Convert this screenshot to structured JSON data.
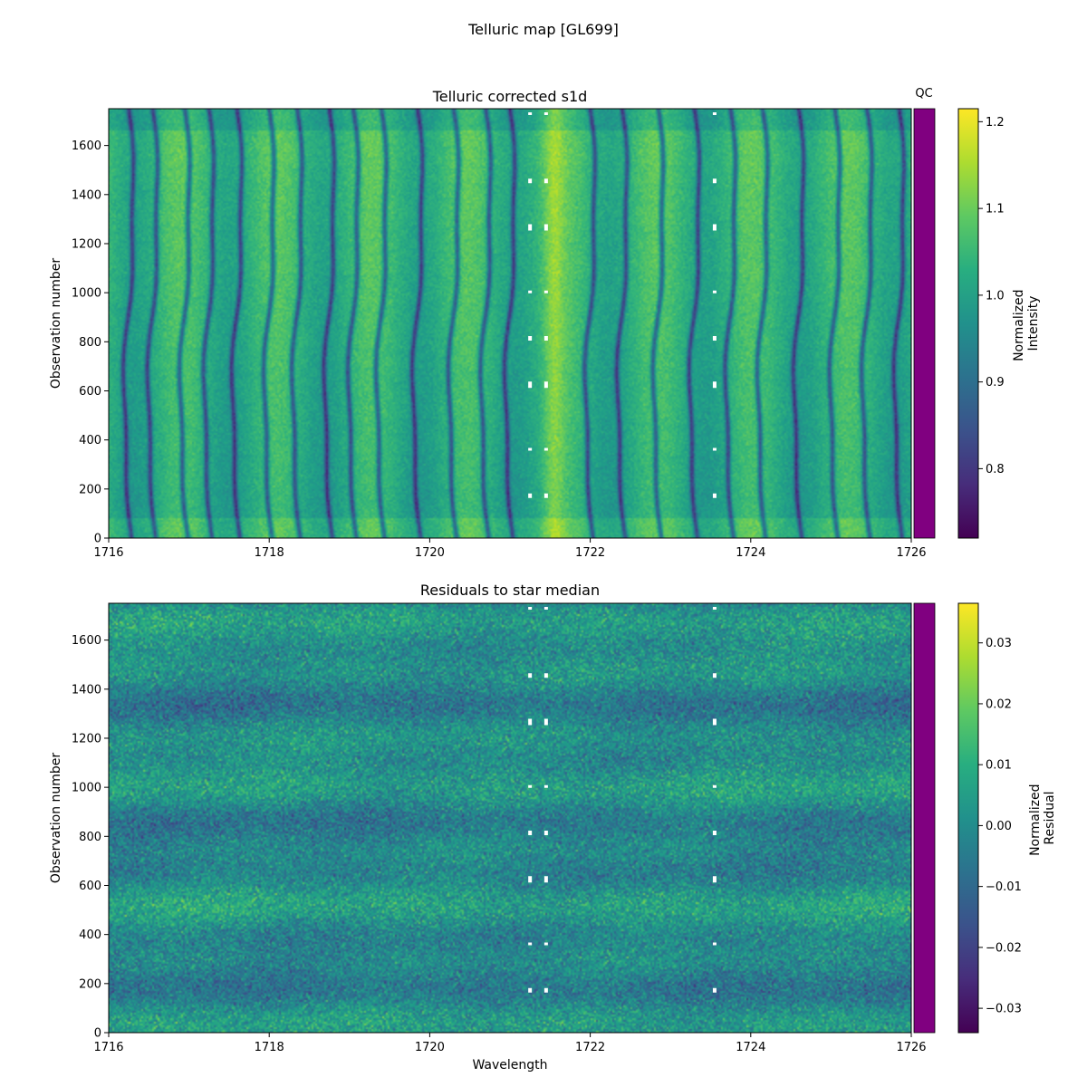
{
  "figure_title": "Telluric map [GL699]",
  "chart_data": [
    {
      "type": "heatmap",
      "title": "Telluric corrected s1d",
      "xlabel": "",
      "ylabel": "Observation number",
      "xlim": [
        1716,
        1726
      ],
      "ylim": [
        0,
        1750
      ],
      "xticks": [
        1716,
        1718,
        1720,
        1722,
        1724,
        1726
      ],
      "xtick_labels": [
        "1716",
        "1718",
        "1720",
        "1722",
        "1724",
        "1726"
      ],
      "yticks": [
        0,
        200,
        400,
        600,
        800,
        1000,
        1200,
        1400,
        1600
      ],
      "ytick_labels": [
        "0",
        "200",
        "400",
        "600",
        "800",
        "1000",
        "1200",
        "1400",
        "1600"
      ],
      "colormap": "viridis",
      "colorbar": {
        "label": "Normalized\nIntensity",
        "label_lines": [
          "Normalized",
          "Intensity"
        ],
        "range": [
          0.72,
          1.215
        ],
        "ticks": [
          0.8,
          0.9,
          1.0,
          1.1,
          1.2
        ],
        "tick_labels": [
          "0.8",
          "0.9",
          "1.0",
          "1.1",
          "1.2"
        ]
      },
      "qc_label": "QC",
      "qc_color": "#800080",
      "absorption_lines_wavelength": [
        1716.25,
        1716.55,
        1716.95,
        1717.25,
        1717.6,
        1718.0,
        1718.35,
        1718.75,
        1719.05,
        1719.4,
        1719.85,
        1720.3,
        1720.7,
        1721.0,
        1722.0,
        1722.4,
        1722.85,
        1723.3,
        1723.75,
        1724.15,
        1724.6,
        1725.05,
        1725.45,
        1725.85
      ],
      "gap_wavelengths": [
        1721.25,
        1721.45,
        1723.55
      ]
    },
    {
      "type": "heatmap",
      "title": "Residuals to star median",
      "xlabel": "Wavelength",
      "ylabel": "Observation number",
      "xlim": [
        1716,
        1726
      ],
      "ylim": [
        0,
        1750
      ],
      "xticks": [
        1716,
        1718,
        1720,
        1722,
        1724,
        1726
      ],
      "xtick_labels": [
        "1716",
        "1718",
        "1720",
        "1722",
        "1724",
        "1726"
      ],
      "yticks": [
        0,
        200,
        400,
        600,
        800,
        1000,
        1200,
        1400,
        1600
      ],
      "ytick_labels": [
        "0",
        "200",
        "400",
        "600",
        "800",
        "1000",
        "1200",
        "1400",
        "1600"
      ],
      "colormap": "viridis",
      "colorbar": {
        "label": "Normalized\nResidual",
        "label_lines": [
          "Normalized",
          "Residual"
        ],
        "range": [
          -0.034,
          0.0365
        ],
        "ticks": [
          -0.03,
          -0.02,
          -0.01,
          0.0,
          0.01,
          0.02,
          0.03
        ],
        "tick_labels": [
          "−0.03",
          "−0.02",
          "−0.01",
          "0.00",
          "0.01",
          "0.02",
          "0.03"
        ]
      },
      "qc_color": "#800080",
      "gap_wavelengths": [
        1721.25,
        1721.45,
        1723.55
      ]
    }
  ]
}
